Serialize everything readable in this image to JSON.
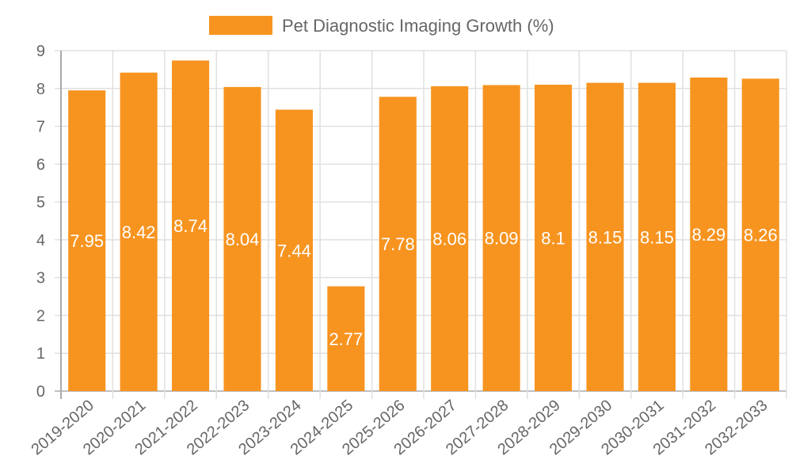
{
  "chart_data": {
    "type": "bar",
    "title": "",
    "legend": {
      "label": "Pet Diagnostic Imaging Growth (%)",
      "position": "top"
    },
    "categories": [
      "2019-2020",
      "2020-2021",
      "2021-2022",
      "2022-2023",
      "2023-2024",
      "2024-2025",
      "2025-2026",
      "2026-2027",
      "2027-2028",
      "2028-2029",
      "2029-2030",
      "2030-2031",
      "2031-2032",
      "2032-2033"
    ],
    "series": [
      {
        "name": "Pet Diagnostic Imaging Growth (%)",
        "color": "#f79420",
        "values": [
          7.95,
          8.42,
          8.74,
          8.04,
          7.44,
          2.77,
          7.78,
          8.06,
          8.09,
          8.1,
          8.15,
          8.15,
          8.29,
          8.26
        ]
      }
    ],
    "data_labels": [
      "7.95",
      "8.42",
      "8.74",
      "8.04",
      "7.44",
      "2.77",
      "7.78",
      "8.06",
      "8.09",
      "8.1",
      "8.15",
      "8.15",
      "8.29",
      "8.26"
    ],
    "xlabel": "",
    "ylabel": "",
    "ylim": [
      0,
      9
    ],
    "yticks": [
      "0",
      "1",
      "2",
      "3",
      "4",
      "5",
      "6",
      "7",
      "8",
      "9"
    ],
    "grid": true,
    "colors": {
      "bar": "#f79420",
      "grid": "#e0e0e0",
      "axis": "#aaaaaa",
      "text": "#666666"
    }
  }
}
